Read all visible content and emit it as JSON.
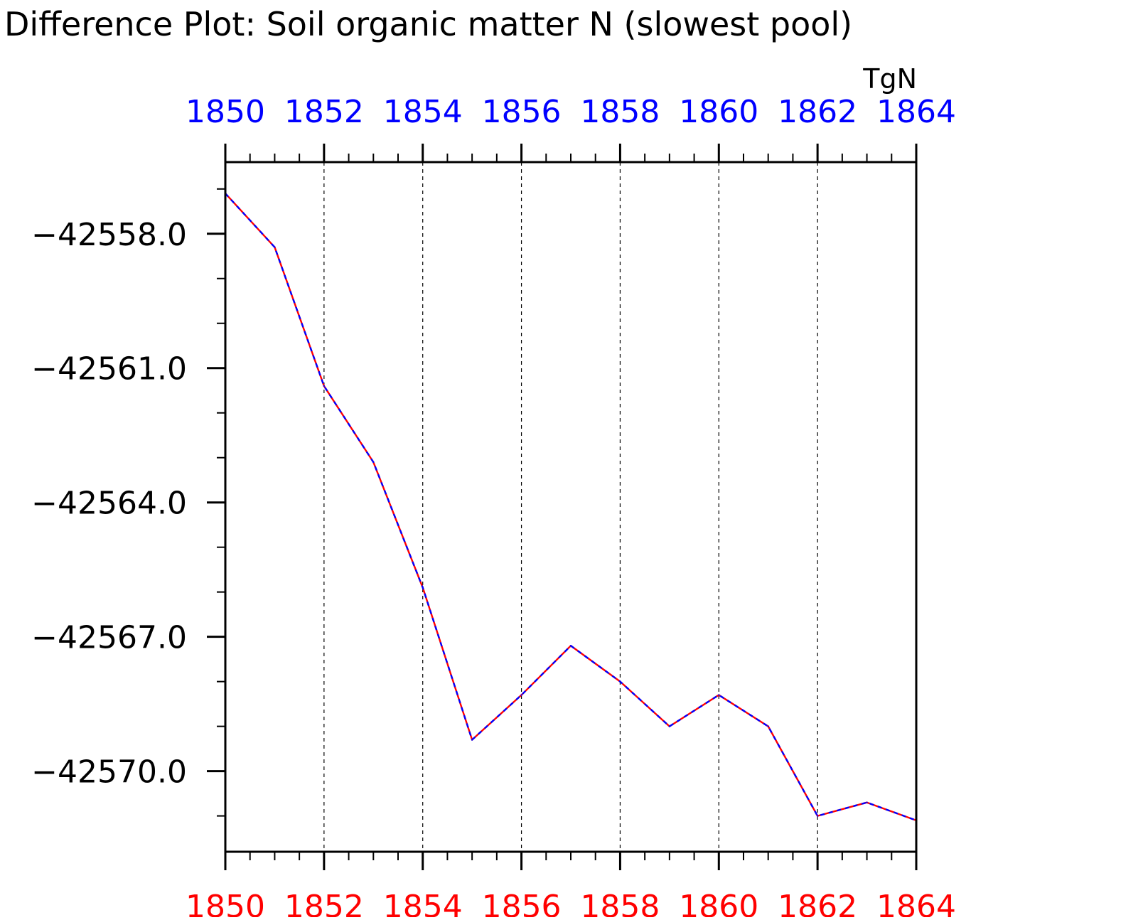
{
  "chart_data": {
    "type": "line",
    "title": "Difference Plot: Soil organic matter N (slowest pool)",
    "units": "TgN",
    "xlabel": "",
    "ylabel": "",
    "x": [
      1850,
      1851,
      1852,
      1853,
      1854,
      1855,
      1856,
      1857,
      1858,
      1859,
      1860,
      1861,
      1862,
      1863,
      1864
    ],
    "xlim": [
      1850,
      1864
    ],
    "ylim": [
      -42571.8,
      -42556.4
    ],
    "x_ticks_major": [
      1850,
      1852,
      1854,
      1856,
      1858,
      1860,
      1862,
      1864
    ],
    "x_tick_labels_top": [
      "1850",
      "1852",
      "1854",
      "1856",
      "1858",
      "1860",
      "1862",
      "1864"
    ],
    "x_tick_labels_bottom": [
      "1850",
      "1852",
      "1854",
      "1856",
      "1858",
      "1860",
      "1862",
      "1864"
    ],
    "y_ticks_major": [
      -42558.0,
      -42561.0,
      -42564.0,
      -42567.0,
      -42570.0
    ],
    "y_tick_labels": [
      "−42558.0",
      "−42561.0",
      "−42564.0",
      "−42567.0",
      "−42570.0"
    ],
    "grid": "vertical dashed at major x ticks",
    "colors": {
      "top_axis_labels": "#0000ff",
      "bottom_axis_labels": "#ff0000",
      "series_a": "#ff0000",
      "series_b": "#0000ff",
      "axes": "#000000",
      "grid": "#000000"
    },
    "series": [
      {
        "values": [
          -42557.1,
          -42558.3,
          -42561.4,
          -42563.1,
          -42565.9,
          -42569.3,
          -42568.3,
          -42567.2,
          -42568.0,
          -42569.0,
          -42568.3,
          -42569.0,
          -42571.0,
          -42570.7,
          -42571.1
        ],
        "color": "#ff0000",
        "style": "solid"
      },
      {
        "values": [
          -42557.1,
          -42558.3,
          -42561.4,
          -42563.1,
          -42565.9,
          -42569.3,
          -42568.3,
          -42567.2,
          -42568.0,
          -42569.0,
          -42568.3,
          -42569.0,
          -42571.0,
          -42570.7,
          -42571.1
        ],
        "color": "#0000ff",
        "style": "dashed"
      }
    ]
  }
}
